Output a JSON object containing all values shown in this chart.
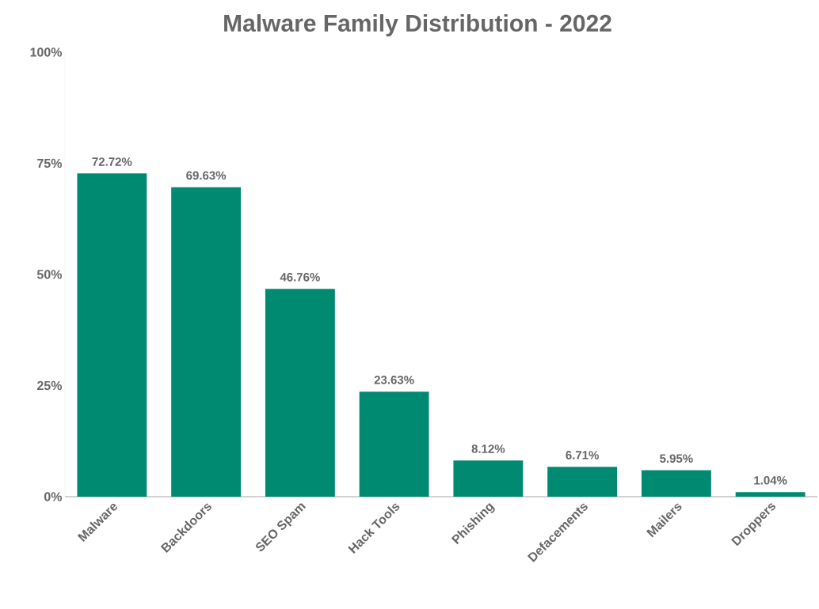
{
  "chart_data": {
    "type": "bar",
    "title": "Malware Family Distribution - 2022",
    "categories": [
      "Malware",
      "Backdoors",
      "SEO Spam",
      "Hack Tools",
      "Phishing",
      "Defacements",
      "Mailers",
      "Droppers"
    ],
    "values": [
      72.72,
      69.63,
      46.76,
      23.63,
      8.12,
      6.71,
      5.95,
      1.04
    ],
    "value_labels": [
      "72.72%",
      "69.63%",
      "46.76%",
      "23.63%",
      "8.12%",
      "6.71%",
      "5.95%",
      "1.04%"
    ],
    "color": "#008a72",
    "ylim": [
      0,
      100
    ],
    "yticks": [
      {
        "value": 0,
        "label": "0%"
      },
      {
        "value": 25,
        "label": "25%"
      },
      {
        "value": 50,
        "label": "50%"
      },
      {
        "value": 75,
        "label": "75%"
      },
      {
        "value": 100,
        "label": "100%"
      }
    ],
    "grid": false
  }
}
